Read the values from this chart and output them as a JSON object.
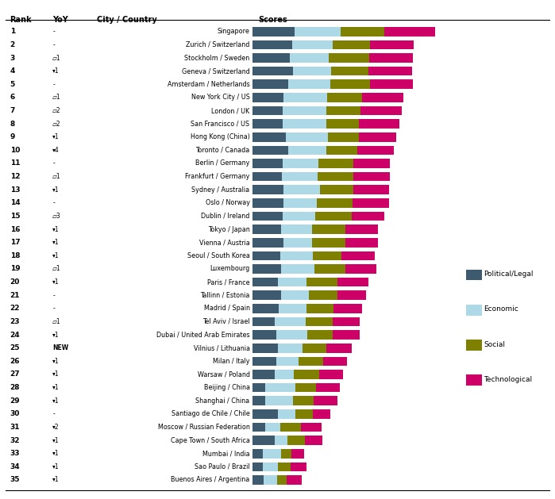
{
  "cities": [
    "Singapore",
    "Zurich / Switzerland",
    "Stockholm / Sweden",
    "Geneva / Switzerland",
    "Amsterdam / Netherlands",
    "New York City / US",
    "London / UK",
    "San Francisco / US",
    "Hong Kong (China)",
    "Toronto / Canada",
    "Berlin / Germany",
    "Frankfurt / Germany",
    "Sydney / Australia",
    "Oslo / Norway",
    "Dublin / Ireland",
    "Tokyo / Japan",
    "Vienna / Austria",
    "Seoul / South Korea",
    "Luxembourg",
    "Paris / France",
    "Tallinn / Estonia",
    "Madrid / Spain",
    "Tel Aviv / Israel",
    "Dubai / United Arab Emirates",
    "Vilnius / Lithuania",
    "Milan / Italy",
    "Warsaw / Poland",
    "Beijing / China",
    "Shanghai / China",
    "Santiago de Chile / Chile",
    "Moscow / Russian Federation",
    "Cape Town / South Africa",
    "Mumbai / India",
    "Sao Paulo / Brazil",
    "Buenos Aires / Argentina"
  ],
  "ranks": [
    "1",
    "2",
    "3",
    "4",
    "5",
    "6",
    "7",
    "8",
    "9",
    "10",
    "11",
    "12",
    "13",
    "14",
    "15",
    "16",
    "17",
    "18",
    "19",
    "20",
    "21",
    "22",
    "23",
    "24",
    "25",
    "26",
    "27",
    "28",
    "29",
    "30",
    "31",
    "32",
    "33",
    "34",
    "35"
  ],
  "yoy": [
    "-",
    "-",
    "▱1",
    "▾1",
    "-",
    "▱1",
    "▱2",
    "▱2",
    "▾1",
    "▾4",
    "-",
    "▱1",
    "▾1",
    "-",
    "▱3",
    "▾1",
    "▾1",
    "▾1",
    "▱1",
    "▾1",
    "-",
    "-",
    "▱1",
    "▾1",
    "NEW",
    "▾1",
    "▾1",
    "▾1",
    "▾1",
    "-",
    "▾2",
    "▾1",
    "▾1",
    "▾1",
    "▾1"
  ],
  "political": [
    95,
    90,
    84,
    92,
    82,
    71,
    68,
    68,
    75,
    82,
    68,
    66,
    70,
    71,
    68,
    65,
    71,
    63,
    65,
    57,
    65,
    60,
    50,
    54,
    57,
    54,
    50,
    29,
    29,
    57,
    29,
    50,
    23,
    23,
    26
  ],
  "economic": [
    105,
    92,
    89,
    86,
    94,
    99,
    99,
    99,
    96,
    86,
    82,
    82,
    84,
    75,
    75,
    71,
    65,
    75,
    75,
    65,
    63,
    63,
    71,
    71,
    57,
    50,
    44,
    68,
    63,
    40,
    34,
    29,
    42,
    34,
    29
  ],
  "social": [
    100,
    86,
    92,
    86,
    92,
    79,
    79,
    75,
    71,
    71,
    79,
    82,
    75,
    82,
    82,
    75,
    75,
    65,
    71,
    71,
    65,
    61,
    61,
    57,
    54,
    57,
    57,
    47,
    47,
    40,
    47,
    40,
    23,
    29,
    23
  ],
  "technological": [
    115,
    99,
    99,
    99,
    96,
    94,
    94,
    92,
    84,
    82,
    84,
    82,
    82,
    82,
    75,
    75,
    75,
    75,
    71,
    71,
    65,
    65,
    61,
    61,
    57,
    54,
    54,
    54,
    54,
    40,
    47,
    40,
    29,
    37,
    34
  ],
  "colors": {
    "political": "#3d5a6e",
    "economic": "#add8e6",
    "social": "#808000",
    "technological": "#cc0066"
  },
  "legend_items": [
    "Political/Legal",
    "Economic",
    "Social",
    "Technological"
  ]
}
